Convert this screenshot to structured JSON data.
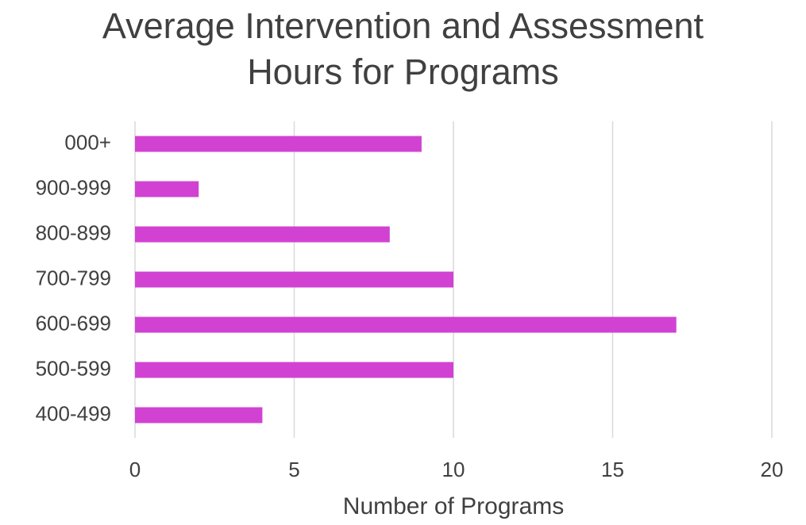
{
  "chart_data": {
    "type": "bar",
    "title": "Average Intervention and Assessment Hours for Programs",
    "x_label": "Number of Programs",
    "categories": [
      "000+",
      "900-999",
      "800-899",
      "700-799",
      "600-699",
      "500-599",
      "400-499"
    ],
    "values": [
      9,
      2,
      8,
      10,
      17,
      10,
      4
    ],
    "color": "#d142d3",
    "xlim": [
      0,
      20
    ],
    "xticks": [
      0,
      5,
      10,
      15,
      20
    ],
    "grid": true
  }
}
